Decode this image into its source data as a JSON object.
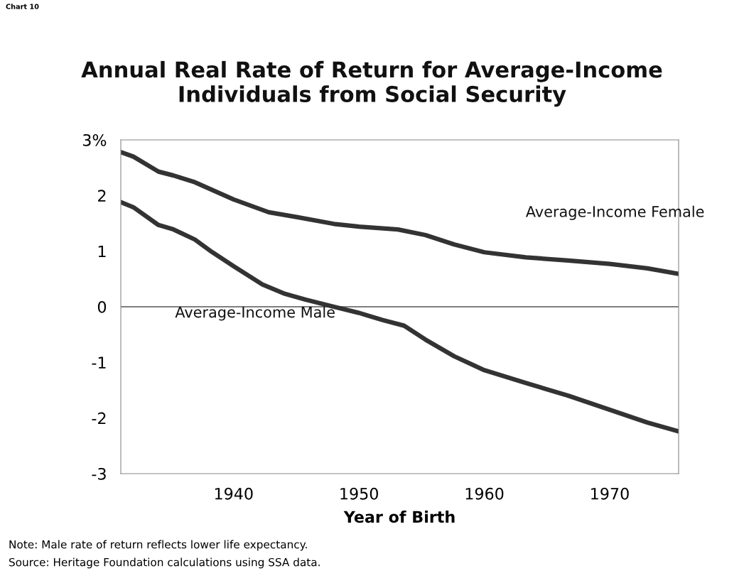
{
  "chart_data": {
    "type": "line",
    "title": "Annual Real Rate of Return for Average-Income\nIndividuals from Social Security",
    "xlabel": "Year of Birth",
    "series": [
      {
        "name": "Average-Income Female",
        "color": "#333333",
        "x": [
          1931,
          1932,
          1934,
          1935.2,
          1936.9,
          1940,
          1942.8,
          1945.1,
          1948,
          1950,
          1953.1,
          1955.3,
          1957.6,
          1960,
          1963.3,
          1966.7,
          1970,
          1973,
          1975.5
        ],
        "values": [
          2.78,
          2.7,
          2.43,
          2.36,
          2.24,
          1.93,
          1.7,
          1.61,
          1.49,
          1.44,
          1.39,
          1.29,
          1.12,
          0.98,
          0.89,
          0.83,
          0.77,
          0.69,
          0.59
        ]
      },
      {
        "name": "Average-Income Male",
        "color": "#333333",
        "x": [
          1931,
          1932,
          1934,
          1935.2,
          1936.9,
          1938.3,
          1940,
          1942.3,
          1944,
          1945.7,
          1948,
          1950,
          1951.9,
          1953.6,
          1955.3,
          1957.6,
          1960,
          1963.3,
          1966.7,
          1970,
          1973,
          1975.5
        ],
        "values": [
          1.88,
          1.79,
          1.47,
          1.39,
          1.21,
          0.98,
          0.73,
          0.4,
          0.24,
          0.13,
          0.0,
          -0.11,
          -0.24,
          -0.34,
          -0.59,
          -0.89,
          -1.14,
          -1.37,
          -1.6,
          -1.85,
          -2.08,
          -2.24
        ]
      }
    ],
    "xlim": [
      1931,
      1975.5
    ],
    "ylim": [
      -3,
      3
    ],
    "xticks": [
      1940,
      1950,
      1960,
      1970
    ],
    "yticks": [
      {
        "value": -3,
        "label": "-3"
      },
      {
        "value": -2,
        "label": "-2"
      },
      {
        "value": -1,
        "label": "-1"
      },
      0,
      1,
      2,
      {
        "value": 3,
        "label": "3%"
      }
    ],
    "ref_lines": [
      {
        "axis": "y",
        "value": 0,
        "color": "#555555"
      }
    ],
    "grid": false,
    "legend": false,
    "marker": "none",
    "line_style": "solid",
    "annotations": [
      "Chart 10",
      "Note: Male rate of return reflects lower life expectancy.",
      "Source: Heritage Foundation calculations using SSA data."
    ]
  }
}
